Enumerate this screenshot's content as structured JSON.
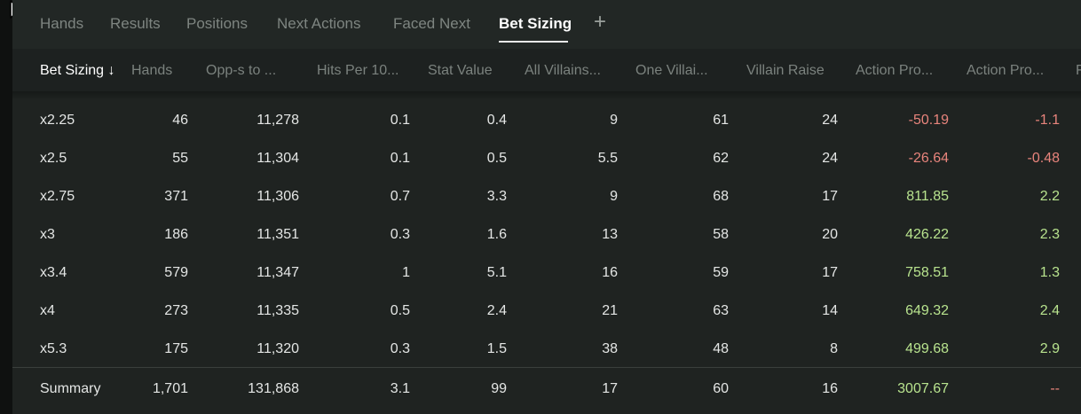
{
  "tabs": [
    {
      "label": "Hands",
      "active": false
    },
    {
      "label": "Results",
      "active": false
    },
    {
      "label": "Positions",
      "active": false
    },
    {
      "label": "Next Actions",
      "active": false
    },
    {
      "label": "Faced Next",
      "active": false
    },
    {
      "label": "Bet Sizing",
      "active": true
    }
  ],
  "add_tab_icon": "plus-icon",
  "columns": [
    "Bet Sizing ↓",
    "Hands",
    "Opp-s to ...",
    "Hits Per 10...",
    "Stat Value",
    "All Villains...",
    "One Villai...",
    "Villain Raise",
    "Action Pro...",
    "Action Pro...",
    "F"
  ],
  "rows": [
    [
      "x2.25",
      "46",
      "11,278",
      "0.1",
      "0.4",
      "9",
      "61",
      "24",
      "-50.19",
      "-1.1"
    ],
    [
      "x2.5",
      "55",
      "11,304",
      "0.1",
      "0.5",
      "5.5",
      "62",
      "24",
      "-26.64",
      "-0.48"
    ],
    [
      "x2.75",
      "371",
      "11,306",
      "0.7",
      "3.3",
      "9",
      "68",
      "17",
      "811.85",
      "2.2"
    ],
    [
      "x3",
      "186",
      "11,351",
      "0.3",
      "1.6",
      "13",
      "58",
      "20",
      "426.22",
      "2.3"
    ],
    [
      "x3.4",
      "579",
      "11,347",
      "1",
      "5.1",
      "16",
      "59",
      "17",
      "758.51",
      "1.3"
    ],
    [
      "x4",
      "273",
      "11,335",
      "0.5",
      "2.4",
      "21",
      "63",
      "14",
      "649.32",
      "2.4"
    ],
    [
      "x5.3",
      "175",
      "11,320",
      "0.3",
      "1.5",
      "38",
      "48",
      "8",
      "499.68",
      "2.9"
    ]
  ],
  "summary": [
    "Summary",
    "1,701",
    "131,868",
    "3.1",
    "99",
    "17",
    "60",
    "16",
    "3007.67",
    "--"
  ],
  "colors": {
    "negative": "#e8847c",
    "positive": "#b8e38e"
  }
}
